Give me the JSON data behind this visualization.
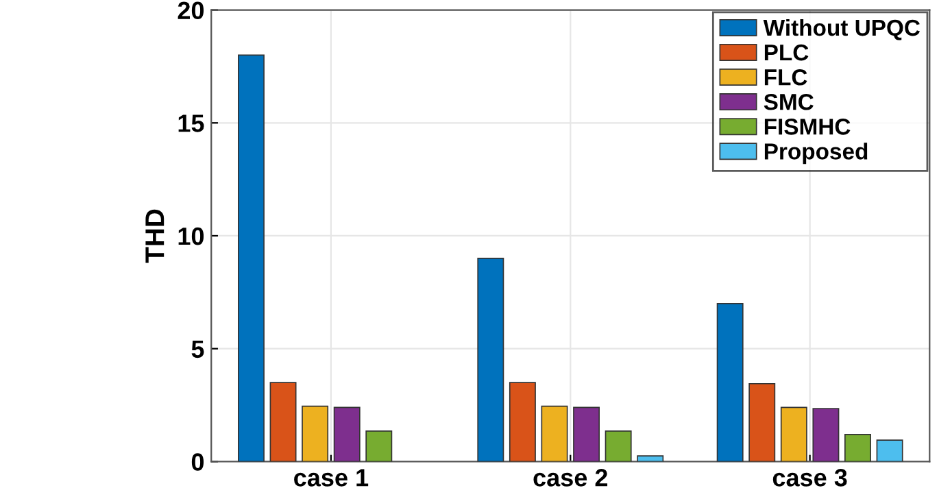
{
  "chart_data": {
    "type": "bar",
    "ylabel": "THD",
    "categories": [
      "case 1",
      "case 2",
      "case 3"
    ],
    "series": [
      {
        "name": "Without UPQC",
        "color": "#0072bd",
        "values": [
          18,
          9,
          7
        ]
      },
      {
        "name": "PLC",
        "color": "#d95319",
        "values": [
          3.5,
          3.5,
          3.45
        ]
      },
      {
        "name": "FLC",
        "color": "#edb120",
        "values": [
          2.45,
          2.45,
          2.4
        ]
      },
      {
        "name": "SMC",
        "color": "#7e2f8e",
        "values": [
          2.4,
          2.4,
          2.35
        ]
      },
      {
        "name": "FISMHC",
        "color": "#77ac30",
        "values": [
          1.35,
          1.35,
          1.2
        ]
      },
      {
        "name": "Proposed",
        "color": "#4dbeee",
        "values": [
          null,
          0.25,
          0.95
        ]
      }
    ],
    "ylim": [
      0,
      20
    ],
    "yticks": [
      0,
      5,
      10,
      15,
      20
    ],
    "grid": true,
    "legend": "top right"
  }
}
